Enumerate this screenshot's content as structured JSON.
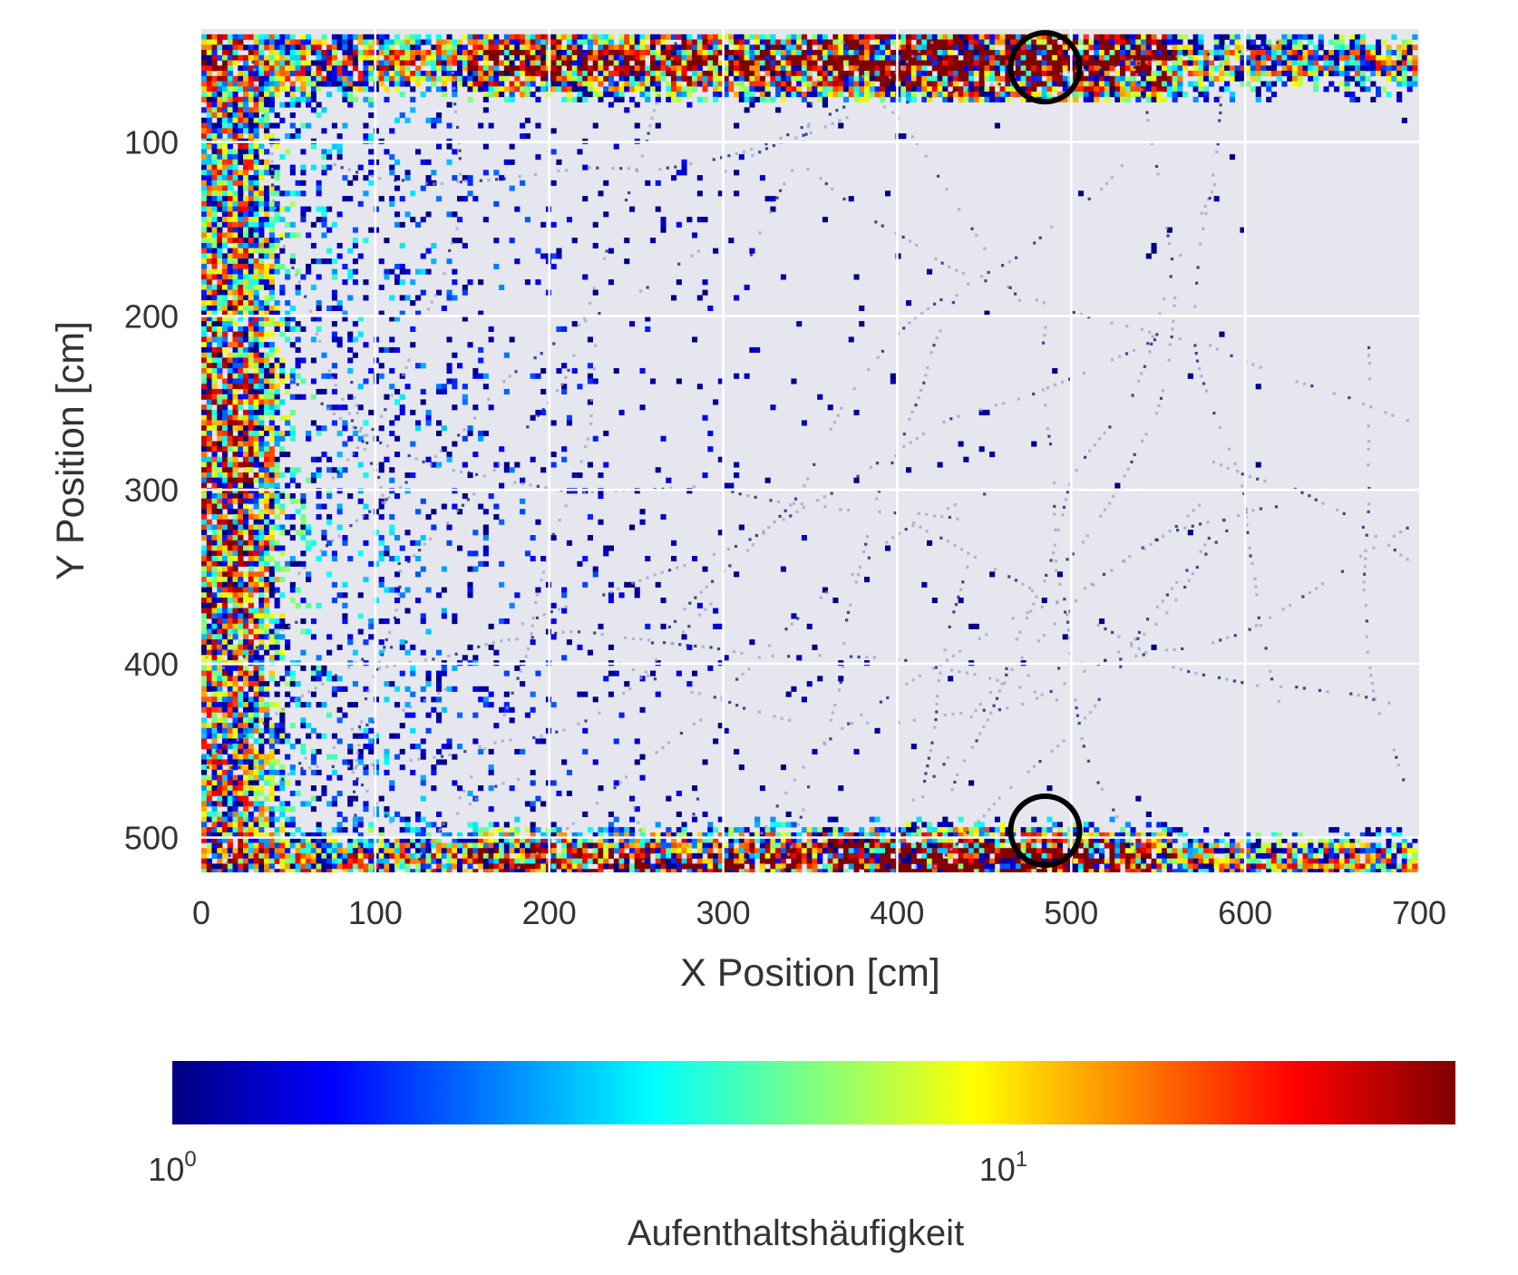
{
  "chart_data": {
    "type": "heatmap",
    "xlabel": "X Position [cm]",
    "ylabel": "Y Position [cm]",
    "xlim": [
      0,
      700
    ],
    "ylim": [
      520,
      35
    ],
    "x_ticks": [
      "0",
      "100",
      "200",
      "300",
      "400",
      "500",
      "600",
      "700"
    ],
    "y_ticks": [
      "100",
      "200",
      "300",
      "400",
      "500"
    ],
    "x_tick_values": [
      0,
      100,
      200,
      300,
      400,
      500,
      600,
      700
    ],
    "y_tick_values": [
      100,
      200,
      300,
      400,
      500
    ],
    "grid": true,
    "y_inverted": true,
    "colormap": "jet",
    "color_scale": "log",
    "colorbar": {
      "label": "Aufenthaltshäufigkeit",
      "orientation": "horizontal",
      "placement": "bottom",
      "ticks": [
        {
          "base": "10",
          "exp": "0",
          "value": 1
        },
        {
          "base": "10",
          "exp": "1",
          "value": 10
        }
      ],
      "range": [
        1,
        35
      ],
      "colors": [
        "#00007f",
        "#0000ff",
        "#007fff",
        "#00ffff",
        "#7fff7f",
        "#ffff00",
        "#ff7f00",
        "#ff0000",
        "#7f0000"
      ]
    },
    "hotspots": [
      {
        "region": "top wall",
        "x_range": [
          380,
          540
        ],
        "y": 55,
        "level": "high"
      },
      {
        "region": "bottom wall",
        "x_range": [
          380,
          520
        ],
        "y": 510,
        "level": "high"
      },
      {
        "region": "left wall",
        "x": 10,
        "y_range": [
          200,
          380
        ],
        "level": "medium"
      }
    ],
    "markers": [
      {
        "shape": "circle",
        "x": 485,
        "y": 57
      },
      {
        "shape": "circle",
        "x": 485,
        "y": 496
      }
    ]
  },
  "style": {
    "plot_background": "#e6e6ee",
    "grid_color": "#ffffff",
    "text_color": "#333333",
    "marker_color": "#000000"
  }
}
